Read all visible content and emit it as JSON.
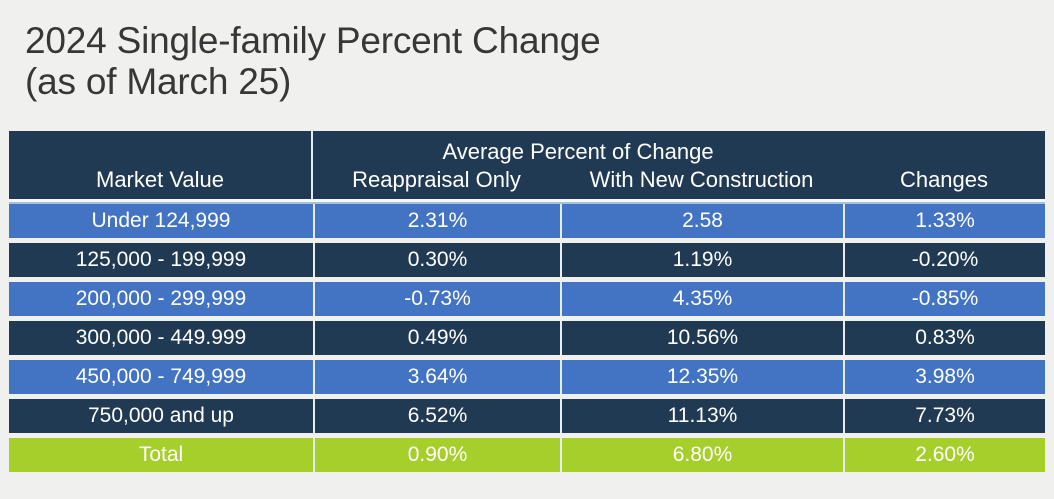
{
  "title": {
    "line1": "2024 Single-family Percent Change",
    "line2": "(as of March 25)"
  },
  "table": {
    "header": {
      "group_label": "Average Percent of Change",
      "columns": [
        "Market Value",
        "Reappraisal Only",
        "With New Construction",
        "Changes"
      ]
    },
    "rows": [
      {
        "style": "blue",
        "cells": [
          "Under 124,999",
          "2.31%",
          "2.58",
          "1.33%"
        ]
      },
      {
        "style": "dark",
        "cells": [
          "125,000 - 199,999",
          "0.30%",
          "1.19%",
          "-0.20%"
        ]
      },
      {
        "style": "blue",
        "cells": [
          "200,000 - 299,999",
          "-0.73%",
          "4.35%",
          "-0.85%"
        ]
      },
      {
        "style": "dark",
        "cells": [
          "300,000 - 449.999",
          "0.49%",
          "10.56%",
          "0.83%"
        ]
      },
      {
        "style": "blue",
        "cells": [
          "450,000 - 749,999",
          "3.64%",
          "12.35%",
          "3.98%"
        ]
      },
      {
        "style": "dark",
        "cells": [
          "750,000 and up",
          "6.52%",
          "11.13%",
          "7.73%"
        ]
      },
      {
        "style": "green",
        "cells": [
          "Total",
          "0.90%",
          "6.80%",
          "2.60%"
        ]
      }
    ]
  },
  "colors": {
    "page_bg": "#f0f0ee",
    "title_color": "#373737",
    "navy": "#203a53",
    "row_blue": "#4373c3",
    "total_green": "#a6cf2b",
    "grid_line": "#e8edf4",
    "text_white": "#ffffff"
  },
  "chart_data": {
    "type": "table",
    "title": "2024 Single-family Percent Change (as of March 25)",
    "column_group": {
      "label": "Average Percent of Change",
      "spans": [
        "Reappraisal Only",
        "With New Construction"
      ]
    },
    "columns": [
      "Market Value",
      "Reappraisal Only",
      "With New Construction",
      "Changes"
    ],
    "rows": [
      [
        "Under 124,999",
        "2.31%",
        "2.58",
        "1.33%"
      ],
      [
        "125,000 - 199,999",
        "0.30%",
        "1.19%",
        "-0.20%"
      ],
      [
        "200,000 - 299,999",
        "-0.73%",
        "4.35%",
        "-0.85%"
      ],
      [
        "300,000 - 449.999",
        "0.49%",
        "10.56%",
        "0.83%"
      ],
      [
        "450,000 - 749,999",
        "3.64%",
        "12.35%",
        "3.98%"
      ],
      [
        "750,000 and up",
        "6.52%",
        "11.13%",
        "7.73%"
      ],
      [
        "Total",
        "0.90%",
        "6.80%",
        "2.60%"
      ]
    ]
  }
}
